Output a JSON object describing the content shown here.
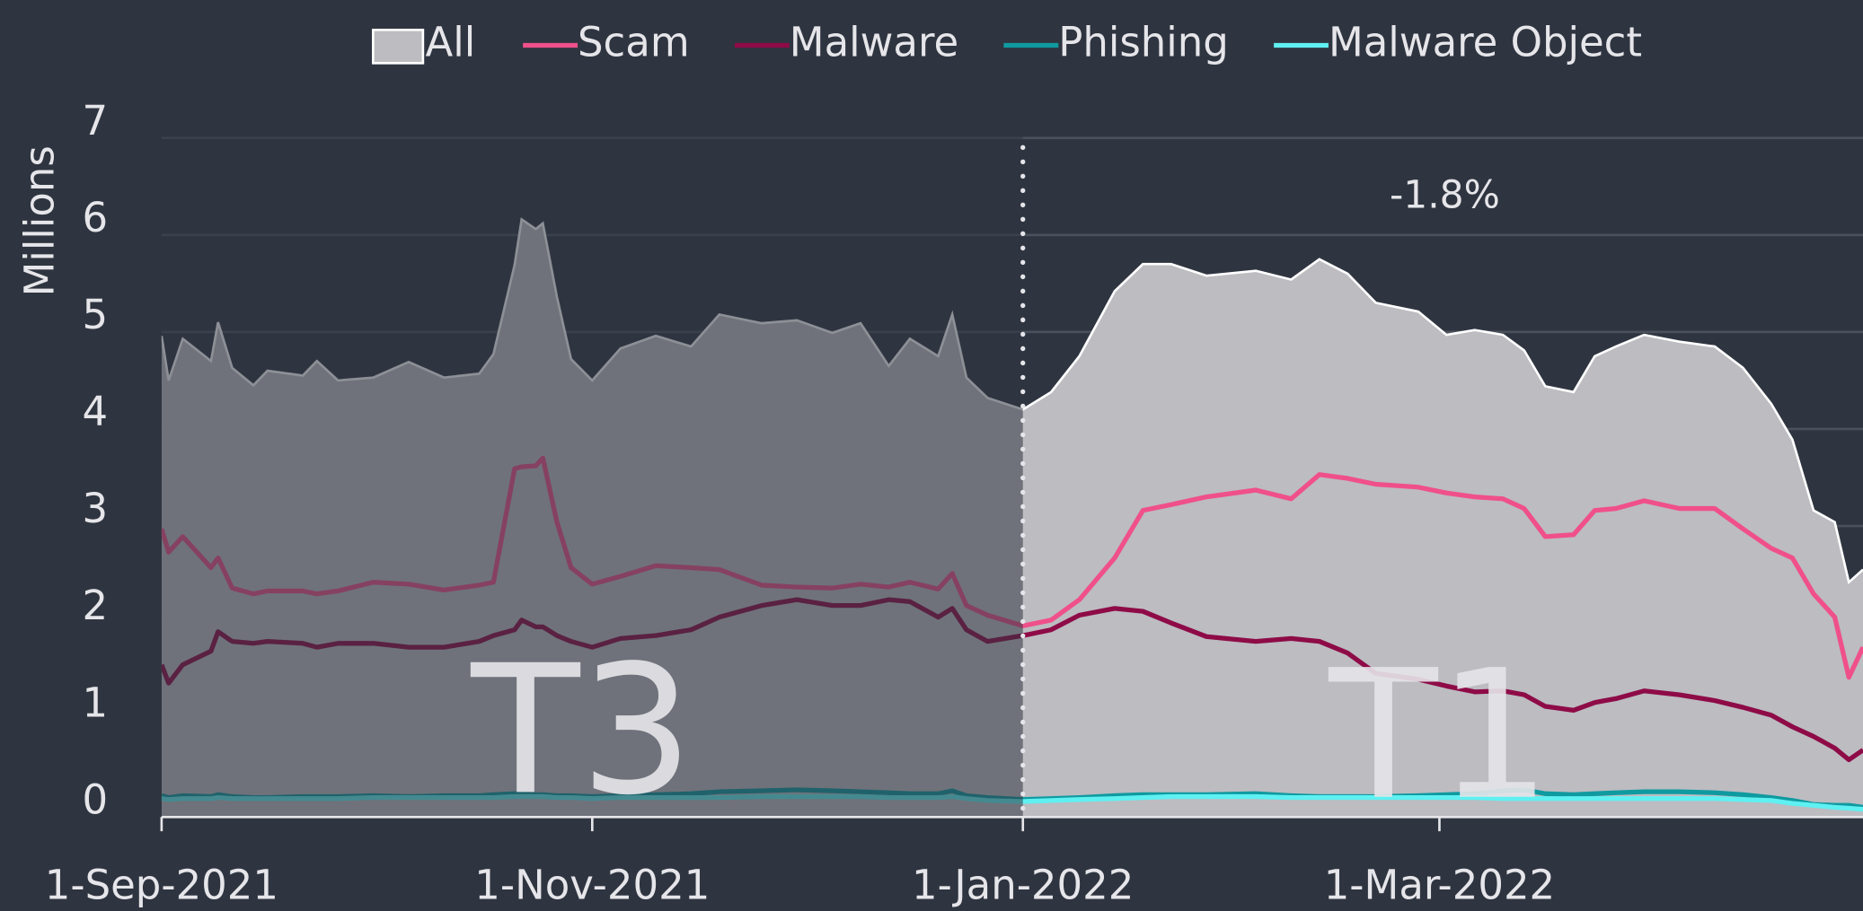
{
  "chart_data": {
    "type": "line",
    "y_label": "Millions",
    "annotations": {
      "change": "-1.8%",
      "left_period": "T3",
      "right_period": "T1"
    },
    "divider_x": "2022-01-01",
    "x": [
      "2021-09-01",
      "2021-09-02",
      "2021-09-04",
      "2021-09-08",
      "2021-09-09",
      "2021-09-11",
      "2021-09-14",
      "2021-09-16",
      "2021-09-21",
      "2021-09-23",
      "2021-09-26",
      "2021-10-01",
      "2021-10-06",
      "2021-10-11",
      "2021-10-16",
      "2021-10-18",
      "2021-10-21",
      "2021-10-22",
      "2021-10-24",
      "2021-10-25",
      "2021-10-27",
      "2021-10-29",
      "2021-11-01",
      "2021-11-05",
      "2021-11-10",
      "2021-11-15",
      "2021-11-19",
      "2021-11-25",
      "2021-11-30",
      "2021-12-05",
      "2021-12-09",
      "2021-12-13",
      "2021-12-16",
      "2021-12-20",
      "2021-12-22",
      "2021-12-24",
      "2021-12-27",
      "2022-01-01",
      "2022-01-05",
      "2022-01-09",
      "2022-01-14",
      "2022-01-18",
      "2022-01-22",
      "2022-01-27",
      "2022-02-03",
      "2022-02-08",
      "2022-02-12",
      "2022-02-16",
      "2022-02-20",
      "2022-02-26",
      "2022-03-02",
      "2022-03-06",
      "2022-03-10",
      "2022-03-13",
      "2022-03-16",
      "2022-03-20",
      "2022-03-23",
      "2022-03-26",
      "2022-03-30",
      "2022-04-04",
      "2022-04-09",
      "2022-04-13",
      "2022-04-17",
      "2022-04-20",
      "2022-04-23",
      "2022-04-26",
      "2022-04-28",
      "2022-04-30"
    ],
    "series": [
      {
        "name": "All",
        "style": "area",
        "color": "#ffffff",
        "fill": "#bcbcc1",
        "values": [
          4.96,
          4.5,
          4.93,
          4.7,
          5.1,
          4.63,
          4.45,
          4.6,
          4.55,
          4.7,
          4.5,
          4.53,
          4.69,
          4.53,
          4.57,
          4.77,
          5.69,
          6.16,
          6.06,
          6.12,
          5.36,
          4.72,
          4.5,
          4.83,
          4.96,
          4.85,
          5.18,
          5.09,
          5.12,
          4.99,
          5.09,
          4.65,
          4.93,
          4.75,
          5.18,
          4.53,
          4.32,
          4.2,
          4.38,
          4.75,
          5.42,
          5.7,
          5.7,
          5.58,
          5.63,
          5.54,
          5.75,
          5.6,
          5.3,
          5.21,
          4.97,
          5.02,
          4.97,
          4.81,
          4.44,
          4.38,
          4.75,
          4.85,
          4.97,
          4.9,
          4.85,
          4.63,
          4.26,
          3.89,
          3.16,
          3.04,
          2.42,
          2.55
        ]
      },
      {
        "name": "Scam",
        "color": "#f0508a",
        "values": [
          2.97,
          2.73,
          2.89,
          2.57,
          2.67,
          2.36,
          2.3,
          2.33,
          2.33,
          2.3,
          2.33,
          2.42,
          2.4,
          2.34,
          2.39,
          2.42,
          3.59,
          3.61,
          3.62,
          3.7,
          3.04,
          2.57,
          2.4,
          2.48,
          2.59,
          2.57,
          2.55,
          2.39,
          2.37,
          2.36,
          2.4,
          2.37,
          2.42,
          2.35,
          2.51,
          2.18,
          2.08,
          1.97,
          2.03,
          2.24,
          2.67,
          3.16,
          3.22,
          3.3,
          3.37,
          3.28,
          3.53,
          3.49,
          3.43,
          3.4,
          3.34,
          3.3,
          3.28,
          3.18,
          2.89,
          2.91,
          3.16,
          3.18,
          3.26,
          3.18,
          3.18,
          2.97,
          2.77,
          2.67,
          2.3,
          2.06,
          1.44,
          1.75
        ]
      },
      {
        "name": "Malware",
        "color": "#8e0b47",
        "values": [
          1.57,
          1.38,
          1.57,
          1.71,
          1.91,
          1.81,
          1.79,
          1.81,
          1.79,
          1.75,
          1.79,
          1.79,
          1.75,
          1.75,
          1.81,
          1.87,
          1.93,
          2.03,
          1.96,
          1.96,
          1.87,
          1.81,
          1.75,
          1.84,
          1.87,
          1.93,
          2.06,
          2.18,
          2.24,
          2.18,
          2.18,
          2.24,
          2.22,
          2.06,
          2.15,
          1.93,
          1.81,
          1.87,
          1.93,
          2.08,
          2.15,
          2.12,
          2.0,
          1.86,
          1.81,
          1.84,
          1.81,
          1.69,
          1.48,
          1.42,
          1.35,
          1.29,
          1.3,
          1.26,
          1.14,
          1.1,
          1.18,
          1.22,
          1.3,
          1.26,
          1.2,
          1.13,
          1.05,
          0.93,
          0.83,
          0.71,
          0.59,
          0.69
        ]
      },
      {
        "name": "Phishing",
        "color": "#0f9aa0",
        "values": [
          0.22,
          0.2,
          0.22,
          0.21,
          0.23,
          0.21,
          0.2,
          0.2,
          0.21,
          0.21,
          0.21,
          0.22,
          0.21,
          0.22,
          0.22,
          0.23,
          0.24,
          0.24,
          0.23,
          0.23,
          0.22,
          0.22,
          0.21,
          0.22,
          0.23,
          0.24,
          0.26,
          0.27,
          0.28,
          0.27,
          0.26,
          0.25,
          0.24,
          0.24,
          0.27,
          0.22,
          0.2,
          0.18,
          0.19,
          0.2,
          0.22,
          0.23,
          0.23,
          0.23,
          0.24,
          0.22,
          0.21,
          0.21,
          0.21,
          0.22,
          0.23,
          0.24,
          0.27,
          0.28,
          0.24,
          0.23,
          0.24,
          0.25,
          0.26,
          0.26,
          0.25,
          0.23,
          0.2,
          0.17,
          0.13,
          0.12,
          0.12,
          0.1
        ]
      },
      {
        "name": "Malware Object",
        "color": "#5ff0f2",
        "values": [
          0.19,
          0.18,
          0.19,
          0.19,
          0.2,
          0.19,
          0.19,
          0.19,
          0.19,
          0.19,
          0.19,
          0.2,
          0.2,
          0.2,
          0.2,
          0.2,
          0.21,
          0.21,
          0.21,
          0.21,
          0.2,
          0.2,
          0.19,
          0.2,
          0.2,
          0.2,
          0.2,
          0.21,
          0.21,
          0.21,
          0.21,
          0.2,
          0.2,
          0.2,
          0.21,
          0.19,
          0.17,
          0.16,
          0.17,
          0.18,
          0.19,
          0.2,
          0.21,
          0.21,
          0.21,
          0.2,
          0.2,
          0.2,
          0.2,
          0.2,
          0.2,
          0.2,
          0.19,
          0.19,
          0.19,
          0.19,
          0.19,
          0.19,
          0.19,
          0.19,
          0.19,
          0.18,
          0.17,
          0.14,
          0.12,
          0.1,
          0.09,
          0.08
        ]
      }
    ],
    "xlim": [
      "2021-09-01",
      "2022-04-30"
    ],
    "xticks": [
      {
        "value": "2021-09-01",
        "label": "1-Sep-2021"
      },
      {
        "value": "2021-11-01",
        "label": "1-Nov-2021"
      },
      {
        "value": "2022-01-01",
        "label": "1-Jan-2022"
      },
      {
        "value": "2022-03-01",
        "label": "1-Mar-2022"
      }
    ],
    "ylim": [
      0,
      7
    ],
    "yticks": [
      0,
      1,
      2,
      3,
      4,
      5,
      6,
      7
    ],
    "grid": true,
    "legend": "top"
  }
}
